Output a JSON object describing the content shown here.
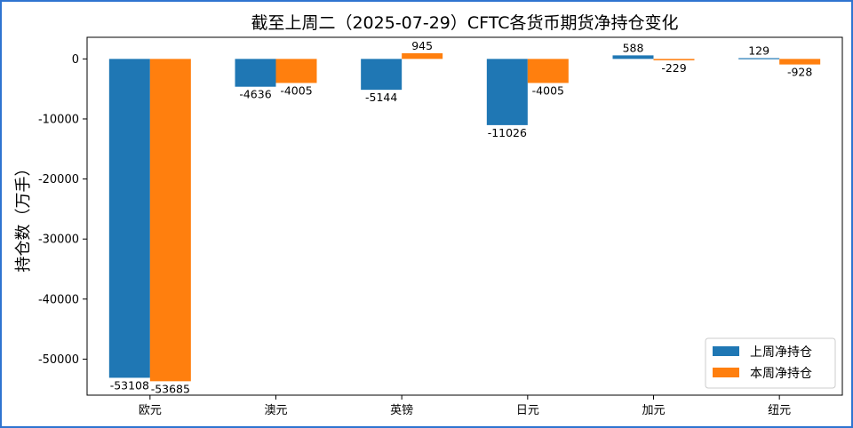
{
  "chart_data": {
    "type": "bar",
    "title": "截至上周二（2025-07-29）CFTC各货币期货净持仓变化",
    "xlabel": "",
    "ylabel": "持仓数（万手）",
    "categories": [
      "欧元",
      "澳元",
      "英镑",
      "日元",
      "加元",
      "纽元"
    ],
    "series": [
      {
        "name": "上周净持仓",
        "color": "#1f77b4",
        "values": [
          -53108,
          -4636,
          -5144,
          -11026,
          588,
          129
        ]
      },
      {
        "name": "本周净持仓",
        "color": "#ff7f0e",
        "values": [
          -53685,
          -4005,
          945,
          -4005,
          -229,
          -928
        ]
      }
    ],
    "ylim": [
      -56000,
      3600
    ],
    "yticks": [
      0,
      -10000,
      -20000,
      -30000,
      -40000,
      -50000
    ],
    "grid": false,
    "legend_position": "lower-right"
  }
}
